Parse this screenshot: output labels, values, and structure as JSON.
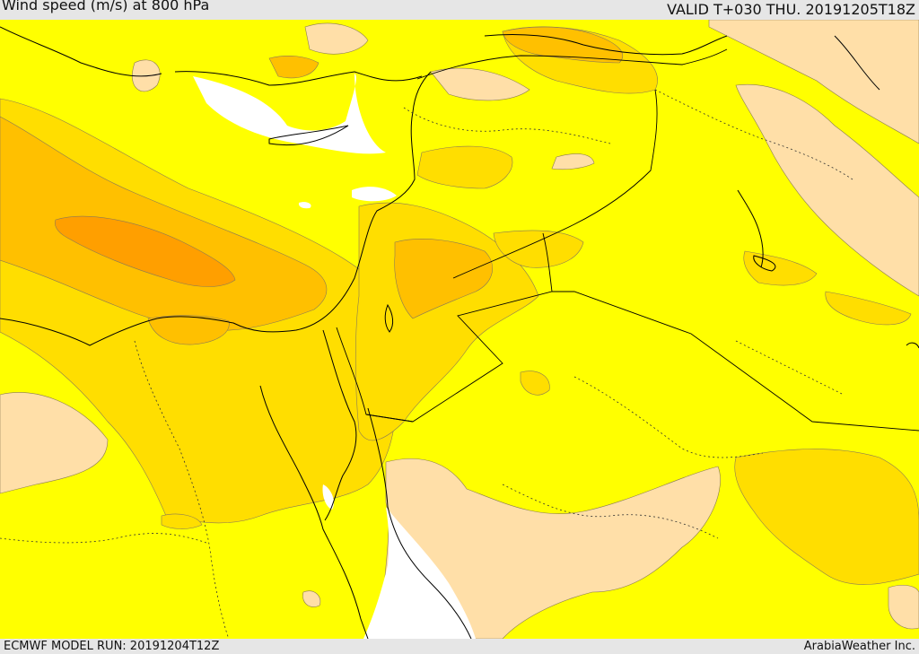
{
  "header": {
    "title": "Wind speed (m/s) at 800 hPa",
    "valid": "VALID T+030 THU. 20191205T18Z"
  },
  "footer": {
    "model_run": "ECMWF MODEL RUN: 20191204T12Z",
    "credit": "ArabiaWeather Inc."
  },
  "colors": {
    "level_1": "#ffdfa8",
    "level_2": "#ffff00",
    "level_3": "#ffde00",
    "level_4": "#ffc000",
    "level_5": "#ff9f00",
    "sea_white": "#ffffff",
    "coast": "#000000"
  }
}
